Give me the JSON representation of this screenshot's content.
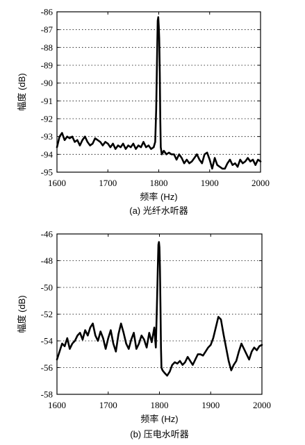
{
  "chart_data": [
    {
      "type": "line",
      "caption": "(a) 光纤水听器",
      "xlabel": "频率 (Hz)",
      "ylabel": "幅度 (dB)",
      "xlim": [
        1600,
        2000
      ],
      "ylim": [
        -95,
        -86
      ],
      "xticks": [
        1600,
        1700,
        1800,
        1900,
        2000
      ],
      "yticks": [
        -86,
        -87,
        -88,
        -89,
        -90,
        -91,
        -92,
        -93,
        -94,
        -95
      ],
      "grid": "dotted horizontal",
      "series": [
        {
          "x": [
            1600,
            1605,
            1610,
            1615,
            1620,
            1625,
            1630,
            1635,
            1640,
            1645,
            1650,
            1655,
            1660,
            1665,
            1670,
            1675,
            1680,
            1685,
            1690,
            1695,
            1700,
            1705,
            1710,
            1715,
            1720,
            1725,
            1730,
            1735,
            1740,
            1745,
            1750,
            1755,
            1760,
            1765,
            1770,
            1775,
            1780,
            1785,
            1790,
            1793,
            1795,
            1797,
            1798,
            1799,
            1800,
            1801,
            1802,
            1803,
            1804,
            1806,
            1810,
            1815,
            1820,
            1825,
            1830,
            1835,
            1840,
            1845,
            1850,
            1855,
            1860,
            1865,
            1870,
            1875,
            1880,
            1885,
            1890,
            1895,
            1900,
            1905,
            1910,
            1915,
            1920,
            1925,
            1930,
            1935,
            1940,
            1945,
            1950,
            1955,
            1960,
            1965,
            1970,
            1975,
            1980,
            1985,
            1990,
            1995,
            2000
          ],
          "y": [
            -93.6,
            -93.0,
            -92.8,
            -93.2,
            -93.0,
            -93.1,
            -93.0,
            -93.3,
            -93.2,
            -93.5,
            -93.2,
            -93.0,
            -93.3,
            -93.5,
            -93.4,
            -93.1,
            -93.2,
            -93.3,
            -93.5,
            -93.3,
            -93.4,
            -93.6,
            -93.4,
            -93.7,
            -93.5,
            -93.6,
            -93.4,
            -93.7,
            -93.5,
            -93.6,
            -93.4,
            -93.7,
            -93.5,
            -93.6,
            -93.3,
            -93.6,
            -93.5,
            -93.7,
            -93.6,
            -93.3,
            -91.5,
            -88.0,
            -86.5,
            -86.3,
            -86.8,
            -87.5,
            -89.5,
            -92.0,
            -93.6,
            -94.0,
            -93.8,
            -94.0,
            -93.9,
            -94.0,
            -94.0,
            -94.3,
            -94.0,
            -94.2,
            -94.5,
            -94.3,
            -94.5,
            -94.4,
            -94.2,
            -94.0,
            -94.3,
            -94.5,
            -94.0,
            -93.9,
            -94.3,
            -94.8,
            -94.2,
            -94.6,
            -94.7,
            -94.8,
            -94.8,
            -94.5,
            -94.3,
            -94.6,
            -94.5,
            -94.7,
            -94.3,
            -94.5,
            -94.4,
            -94.2,
            -94.4,
            -94.3,
            -94.6,
            -94.3,
            -94.4
          ]
        }
      ]
    },
    {
      "type": "line",
      "caption": "(b) 压电水听器",
      "xlabel": "频率 (Hz)",
      "ylabel": "幅度 (dB)",
      "xlim": [
        1600,
        2000
      ],
      "ylim": [
        -58,
        -46
      ],
      "xticks": [
        1600,
        1700,
        1800,
        1900,
        2000
      ],
      "yticks": [
        -46,
        -48,
        -50,
        -52,
        -54,
        -56,
        -58
      ],
      "grid": "dotted horizontal",
      "series": [
        {
          "x": [
            1600,
            1605,
            1610,
            1615,
            1620,
            1625,
            1630,
            1635,
            1640,
            1645,
            1650,
            1655,
            1660,
            1665,
            1670,
            1675,
            1680,
            1685,
            1690,
            1695,
            1700,
            1705,
            1710,
            1715,
            1720,
            1725,
            1730,
            1735,
            1740,
            1745,
            1750,
            1755,
            1760,
            1765,
            1770,
            1775,
            1780,
            1785,
            1790,
            1793,
            1795,
            1797,
            1798,
            1799,
            1800,
            1801,
            1802,
            1803,
            1804,
            1806,
            1810,
            1815,
            1820,
            1825,
            1830,
            1835,
            1840,
            1845,
            1850,
            1855,
            1860,
            1865,
            1870,
            1875,
            1880,
            1885,
            1890,
            1895,
            1900,
            1905,
            1910,
            1915,
            1920,
            1925,
            1930,
            1935,
            1940,
            1945,
            1950,
            1955,
            1960,
            1965,
            1970,
            1975,
            1980,
            1985,
            1990,
            1995,
            2000
          ],
          "y": [
            -55.4,
            -54.8,
            -54.2,
            -54.4,
            -53.8,
            -54.6,
            -54.2,
            -54.0,
            -53.6,
            -53.4,
            -53.9,
            -53.2,
            -53.6,
            -53.0,
            -52.7,
            -53.6,
            -54.0,
            -53.3,
            -53.8,
            -54.6,
            -53.8,
            -53.2,
            -54.2,
            -54.8,
            -53.5,
            -52.7,
            -53.4,
            -54.2,
            -54.6,
            -53.9,
            -53.4,
            -54.6,
            -54.2,
            -53.6,
            -53.9,
            -54.5,
            -53.4,
            -54.1,
            -53.0,
            -54.5,
            -51.5,
            -48.2,
            -46.8,
            -46.6,
            -47.0,
            -48.5,
            -51.5,
            -54.5,
            -56.0,
            -56.2,
            -56.4,
            -56.6,
            -56.3,
            -55.8,
            -55.6,
            -55.7,
            -55.5,
            -55.8,
            -55.6,
            -55.2,
            -55.5,
            -55.8,
            -55.4,
            -55.0,
            -55.0,
            -55.1,
            -54.8,
            -54.5,
            -54.3,
            -53.8,
            -53.0,
            -52.2,
            -52.4,
            -53.5,
            -54.5,
            -55.5,
            -56.2,
            -55.8,
            -55.5,
            -54.8,
            -54.2,
            -54.6,
            -55.0,
            -55.4,
            -54.8,
            -54.5,
            -54.7,
            -54.4,
            -54.3
          ]
        }
      ]
    }
  ]
}
